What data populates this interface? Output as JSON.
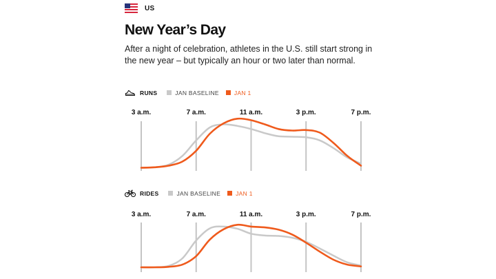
{
  "header": {
    "country": "US",
    "title": "New Year’s Day",
    "subtitle": "After a night of celebration, athletes in the U.S. still start strong in the new year – but typically an hour or two later than normal."
  },
  "colors": {
    "baseline": "#c9c9c9",
    "jan1": "#ef5a1c",
    "gridline": "#c4c4c4"
  },
  "chart_data": [
    {
      "type": "line",
      "name": "RUNS",
      "icon": "running-shoe-icon",
      "legend": [
        {
          "label": "JAN BASELINE",
          "color": "#c9c9c9"
        },
        {
          "label": "JAN 1",
          "color": "#ef5a1c"
        }
      ],
      "x_ticks": [
        "3 a.m.",
        "7 a.m.",
        "11 a.m.",
        "3 p.m.",
        "7 p.m."
      ],
      "xlim": [
        3,
        19
      ],
      "ylim": [
        0,
        100
      ],
      "y_axis_visible": false,
      "series": [
        {
          "name": "JAN BASELINE",
          "color": "#c9c9c9",
          "x": [
            3,
            4,
            5,
            6,
            7,
            8,
            9,
            10,
            11,
            12,
            13,
            14,
            15,
            16,
            17,
            18,
            19
          ],
          "values": [
            2,
            3,
            8,
            25,
            55,
            80,
            86,
            83,
            77,
            69,
            63,
            62,
            61,
            55,
            40,
            22,
            10
          ]
        },
        {
          "name": "JAN 1",
          "color": "#ef5a1c",
          "x": [
            3,
            4,
            5,
            6,
            7,
            8,
            9,
            10,
            11,
            12,
            13,
            14,
            15,
            16,
            17,
            18,
            19
          ],
          "values": [
            2,
            3,
            6,
            14,
            35,
            68,
            88,
            97,
            94,
            86,
            77,
            74,
            75,
            70,
            50,
            25,
            6
          ]
        }
      ]
    },
    {
      "type": "line",
      "name": "RIDES",
      "icon": "bicycle-icon",
      "legend": [
        {
          "label": "JAN BASELINE",
          "color": "#c9c9c9"
        },
        {
          "label": "JAN 1",
          "color": "#ef5a1c"
        }
      ],
      "x_ticks": [
        "3 a.m.",
        "7 a.m.",
        "11 a.m.",
        "3 p.m.",
        "7 p.m."
      ],
      "xlim": [
        3,
        19
      ],
      "ylim": [
        0,
        100
      ],
      "y_axis_visible": false,
      "series": [
        {
          "name": "JAN BASELINE",
          "color": "#c9c9c9",
          "x": [
            3,
            4,
            5,
            6,
            7,
            8,
            9,
            10,
            11,
            12,
            13,
            14,
            15,
            16,
            17,
            18,
            19
          ],
          "values": [
            0,
            0,
            3,
            20,
            60,
            87,
            91,
            86,
            75,
            71,
            70,
            66,
            57,
            42,
            26,
            11,
            4
          ]
        },
        {
          "name": "JAN 1",
          "color": "#ef5a1c",
          "x": [
            3,
            4,
            5,
            6,
            7,
            8,
            9,
            10,
            11,
            12,
            13,
            14,
            15,
            16,
            17,
            18,
            19
          ],
          "values": [
            0,
            0,
            1,
            6,
            25,
            62,
            85,
            95,
            91,
            89,
            84,
            73,
            55,
            35,
            17,
            6,
            2
          ]
        }
      ]
    }
  ]
}
